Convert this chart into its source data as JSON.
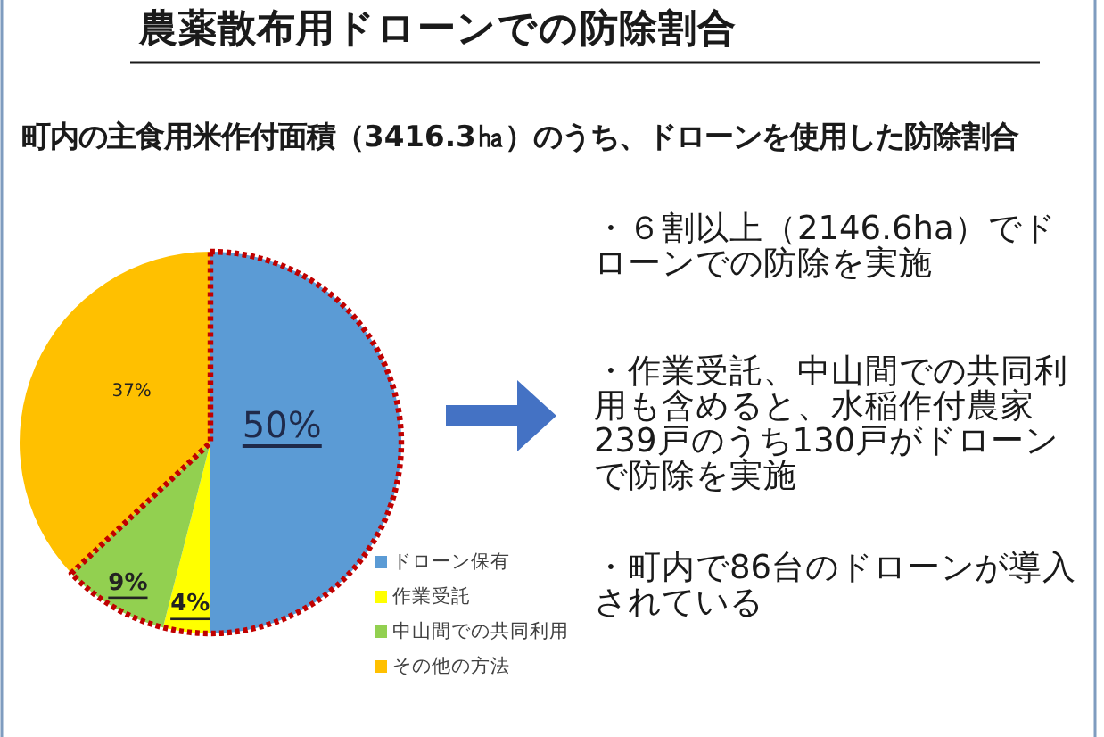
{
  "chart_data": {
    "type": "pie",
    "title": "農薬散布用ドローンでの防除割合",
    "subtitle": "町内の主食用米作付面積（3416.3㏊）のうち、ドローンを使用した防除割合",
    "categories": [
      "ドローン保有",
      "作業受託",
      "中山間での共同利用",
      "その他の方法"
    ],
    "values": [
      50,
      4,
      9,
      37
    ],
    "colors": [
      "#5b9bd5",
      "#ffff00",
      "#92d050",
      "#ffc000"
    ],
    "value_labels": [
      "50%",
      "4%",
      "9%",
      "37%"
    ],
    "legend": "bottom right",
    "annotations": [
      "・６割以上（2146.6ha）でドローンでの防除を実施",
      "・作業受託、中山間での共同利用も含めると、水稲作付農家239戸のうち130戸がドローンで防除を実施",
      "・町内で86台のドローンが導入されている"
    ]
  }
}
